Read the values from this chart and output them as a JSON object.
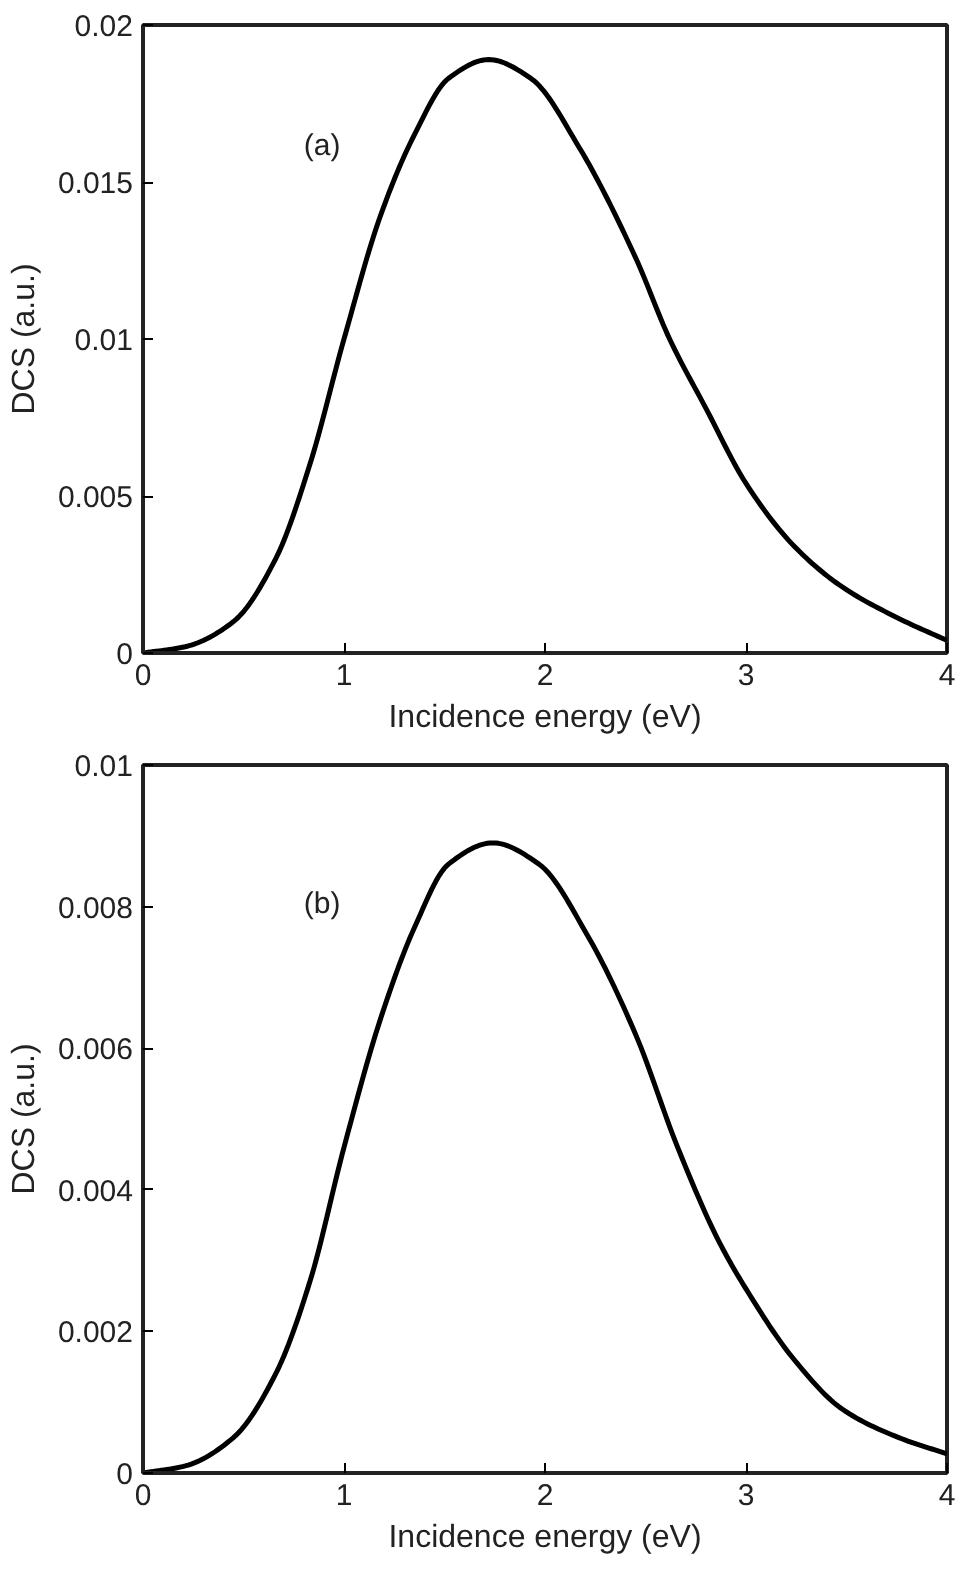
{
  "chart_data": [
    {
      "type": "line",
      "xlabel": "Incidence energy (eV)",
      "ylabel": "DCS (a.u.)",
      "annotations": [
        "(a)"
      ],
      "xlim": [
        0,
        4
      ],
      "ylim": [
        0,
        0.02
      ],
      "xticks": [
        0,
        1,
        2,
        3,
        4
      ],
      "yticks": [
        0,
        0.005,
        0.01,
        0.015,
        0.02
      ],
      "grid": false,
      "x": [
        0,
        0.21,
        0.45,
        0.66,
        0.83,
        1.0,
        1.18,
        1.35,
        1.52,
        1.72,
        1.93,
        2.17,
        2.45,
        2.62,
        2.8,
        3.0,
        3.24,
        3.48,
        3.76,
        4.0
      ],
      "series": [
        {
          "color": "#000000",
          "values": [
            0,
            0.0002,
            0.001,
            0.003,
            0.006,
            0.01,
            0.0139,
            0.0165,
            0.0183,
            0.0189,
            0.0183,
            0.0161,
            0.0126,
            0.01,
            0.0078,
            0.0054,
            0.0034,
            0.0021,
            0.0011,
            0.0004
          ]
        }
      ]
    },
    {
      "type": "line",
      "xlabel": "Incidence energy (eV)",
      "ylabel": "DCS (a.u.)",
      "annotations": [
        "(b)"
      ],
      "xlim": [
        0,
        4
      ],
      "ylim": [
        0,
        0.01
      ],
      "xticks": [
        0,
        1,
        2,
        3,
        4
      ],
      "yticks": [
        0,
        0.002,
        0.004,
        0.006,
        0.008,
        0.01
      ],
      "grid": false,
      "x": [
        0,
        0.21,
        0.45,
        0.66,
        0.83,
        1.0,
        1.18,
        1.35,
        1.52,
        1.74,
        1.97,
        2.21,
        2.45,
        2.66,
        2.86,
        3.0,
        3.24,
        3.48,
        3.76,
        4.0
      ],
      "series": [
        {
          "color": "#000000",
          "values": [
            0,
            0.0001,
            0.0005,
            0.0014,
            0.0027,
            0.0046,
            0.0064,
            0.0077,
            0.0086,
            0.0089,
            0.0086,
            0.0076,
            0.0062,
            0.0046,
            0.0033,
            0.0026,
            0.0016,
            0.0009,
            0.0005,
            0.00027
          ]
        }
      ]
    }
  ]
}
